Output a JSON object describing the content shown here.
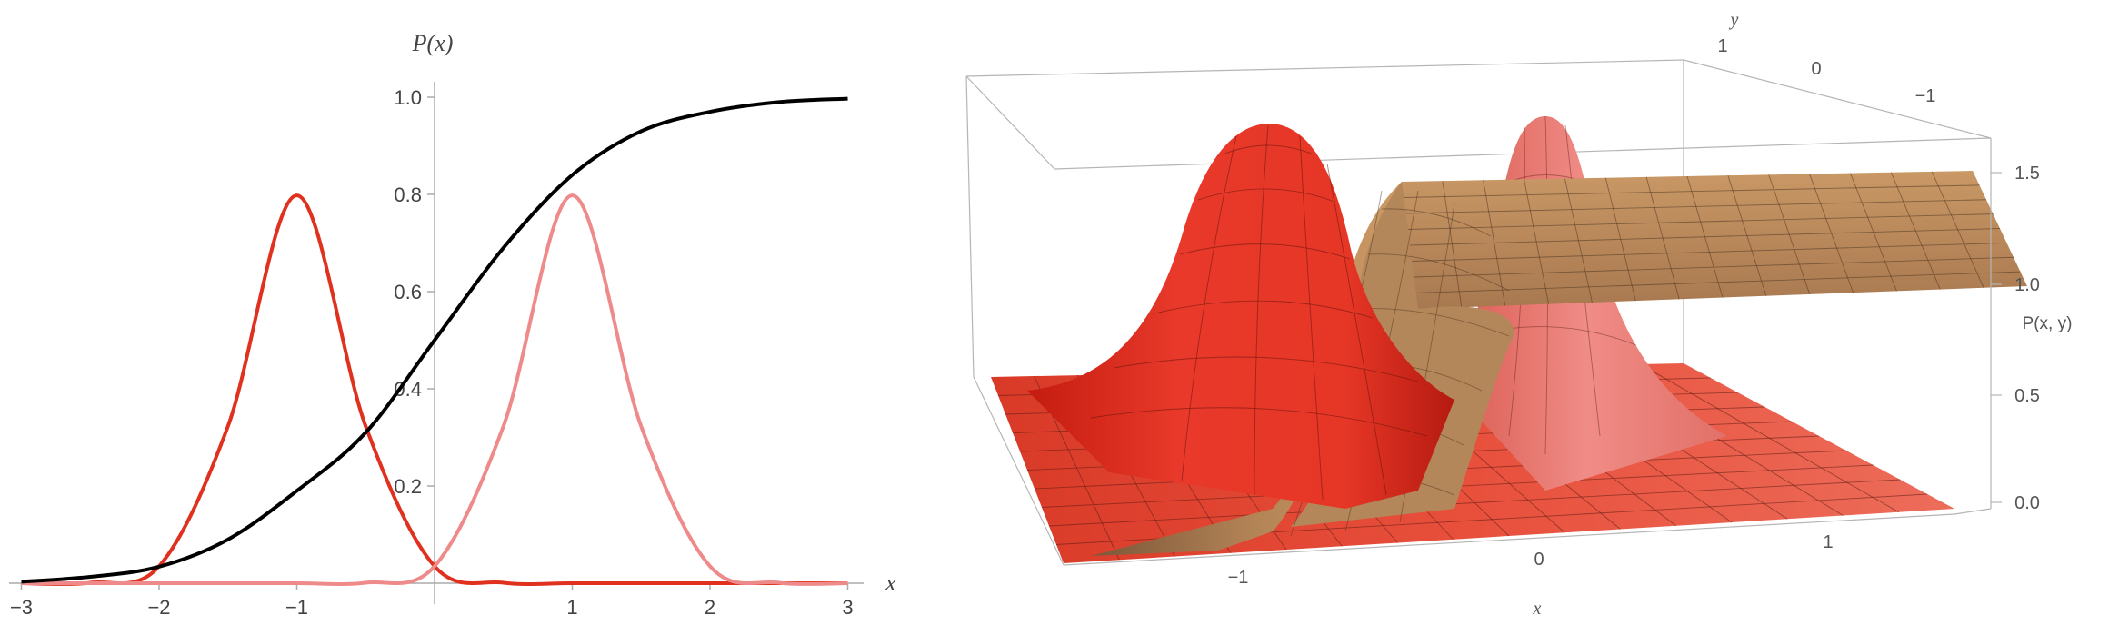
{
  "chart_data": [
    {
      "type": "line",
      "xlabel": "x",
      "ylabel": "P(x)",
      "xlim": [
        -3.05,
        3.05
      ],
      "ylim": [
        0,
        1.05
      ],
      "xticks": [
        "−3",
        "−2",
        "−1",
        "1",
        "2",
        "3"
      ],
      "xtick_values": [
        -3,
        -2,
        -1,
        1,
        2,
        3
      ],
      "yticks": [
        "0.2",
        "0.4",
        "0.6",
        "0.8",
        "1.0"
      ],
      "ytick_values": [
        0.2,
        0.4,
        0.6,
        0.8,
        1.0
      ],
      "series": [
        {
          "color": "#e0301e",
          "x": [
            -3.0,
            -2.5,
            -2.0,
            -1.5,
            -1.0,
            -0.5,
            0.0,
            0.5,
            1.0,
            1.5,
            2.0,
            2.5,
            3.0
          ],
          "y": [
            0.0,
            0.001,
            0.035,
            0.323,
            0.798,
            0.323,
            0.035,
            0.001,
            0.0,
            0.0,
            0.0,
            0.0,
            0.0
          ]
        },
        {
          "color": "#ee8a8a",
          "x": [
            -3.0,
            -2.5,
            -2.0,
            -1.5,
            -1.0,
            -0.5,
            0.0,
            0.5,
            1.0,
            1.5,
            2.0,
            2.5,
            3.0
          ],
          "y": [
            0.0,
            0.0,
            0.0,
            0.0,
            0.0,
            0.001,
            0.035,
            0.323,
            0.798,
            0.323,
            0.035,
            0.001,
            0.0
          ]
        },
        {
          "color": "#000000",
          "x": [
            -3.0,
            -2.5,
            -2.0,
            -1.5,
            -1.0,
            -0.5,
            0.0,
            0.5,
            1.0,
            1.5,
            2.0,
            2.5,
            3.0
          ],
          "y": [
            0.003,
            0.013,
            0.034,
            0.09,
            0.19,
            0.31,
            0.5,
            0.69,
            0.84,
            0.93,
            0.97,
            0.99,
            0.997
          ]
        }
      ],
      "grid": false
    },
    {
      "type": "surface3d",
      "xlabel": "x",
      "ylabel": "y",
      "zlabel": "P(x, y)",
      "xticks": [
        "−1",
        "0",
        "1"
      ],
      "yticks": [
        "1",
        "0",
        "−1"
      ],
      "zticks": [
        "0.0",
        "0.5",
        "1.0",
        "1.5"
      ],
      "zlim": [
        0,
        1.6
      ],
      "surfaces": [
        {
          "description_color": "#e8392a",
          "peak_x": -1,
          "peak_y": 0,
          "peak_z": 1.6
        },
        {
          "description_color": "#ec7a72",
          "peak_x": 1,
          "peak_y": 0,
          "peak_z": 1.6
        },
        {
          "description_color": "#c89160",
          "shape": "sigmoid step from 0 to 1 along x"
        }
      ]
    }
  ]
}
